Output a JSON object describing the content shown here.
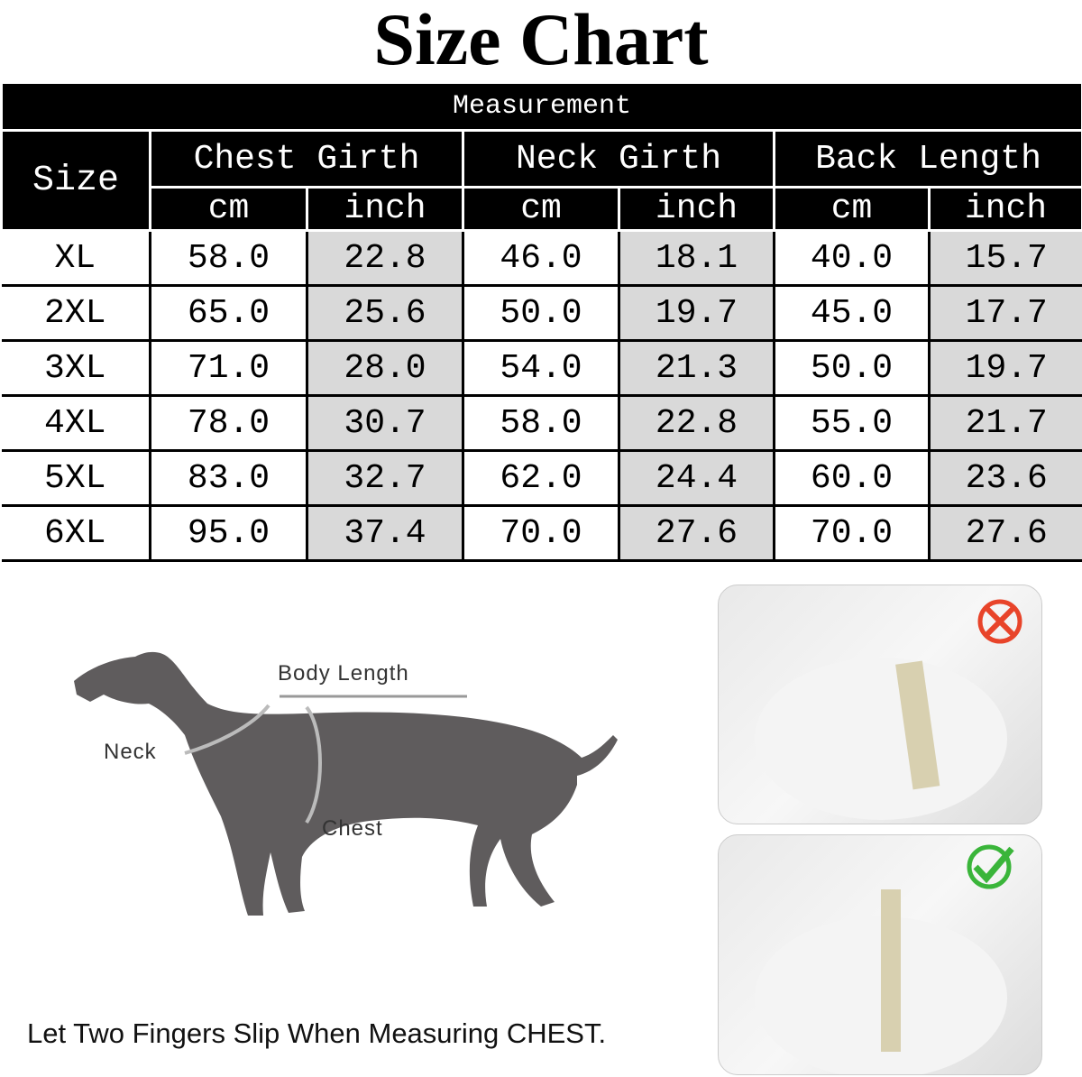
{
  "title": "Size Chart",
  "table": {
    "measurement_label": "Measurement",
    "size_label": "Size",
    "groups": [
      "Chest Girth",
      "Neck Girth",
      "Back Length"
    ],
    "units": [
      "cm",
      "inch",
      "cm",
      "inch",
      "cm",
      "inch"
    ],
    "rows": [
      [
        "XL",
        "58.0",
        "22.8",
        "46.0",
        "18.1",
        "40.0",
        "15.7"
      ],
      [
        "2XL",
        "65.0",
        "25.6",
        "50.0",
        "19.7",
        "45.0",
        "17.7"
      ],
      [
        "3XL",
        "71.0",
        "28.0",
        "54.0",
        "21.3",
        "50.0",
        "19.7"
      ],
      [
        "4XL",
        "78.0",
        "30.7",
        "58.0",
        "22.8",
        "55.0",
        "21.7"
      ],
      [
        "5XL",
        "83.0",
        "32.7",
        "62.0",
        "24.4",
        "60.0",
        "23.6"
      ],
      [
        "6XL",
        "95.0",
        "37.4",
        "70.0",
        "27.6",
        "70.0",
        "27.6"
      ]
    ]
  },
  "diagram": {
    "body_length": "Body Length",
    "neck": "Neck",
    "chest": "Chest"
  },
  "caption": "Let Two Fingers Slip When Measuring CHEST.",
  "photos": [
    {
      "status_icon": "cross-icon",
      "color": "#e8442a"
    },
    {
      "status_icon": "check-icon",
      "color": "#3ab53a"
    }
  ],
  "colors": {
    "header": "#000000",
    "inch_cells": "#d9d9d9",
    "dog": "#5f5c5d"
  }
}
